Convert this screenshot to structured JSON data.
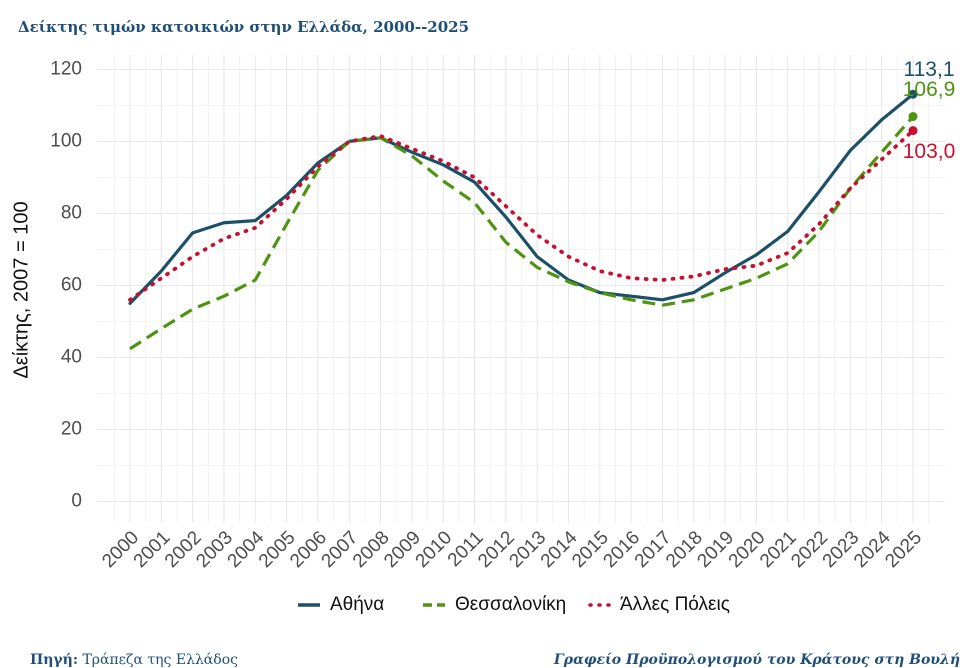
{
  "chart_data": {
    "type": "line",
    "title": "Δείκτης τιμών κατοικιών στην Ελλάδα, 2000--2025",
    "y_label": "Δείκτης, 2007 = 100",
    "categories": [
      "2000",
      "2001",
      "2002",
      "2003",
      "2004",
      "2005",
      "2006",
      "2007",
      "2008",
      "2009",
      "2010",
      "2011",
      "2012",
      "2013",
      "2014",
      "2015",
      "2016",
      "2017",
      "2018",
      "2019",
      "2020",
      "2021",
      "2022",
      "2023",
      "2024",
      "2025"
    ],
    "series": [
      {
        "name": "Αθήνα",
        "color": "#1b5068",
        "dash": "solid",
        "values": [
          55,
          64,
          74.6,
          77.4,
          78,
          85,
          94,
          100,
          101,
          97,
          93.5,
          88.7,
          79,
          68,
          61.5,
          58,
          57,
          56,
          58,
          63.5,
          68.5,
          75,
          86,
          97.5,
          106,
          113.1
        ],
        "value_labels": [
          null,
          null,
          null,
          null,
          null,
          null,
          null,
          null,
          null,
          null,
          null,
          null,
          null,
          null,
          null,
          null,
          null,
          null,
          null,
          null,
          null,
          null,
          null,
          null,
          null,
          "113,1"
        ]
      },
      {
        "name": "Θεσσαλονίκη",
        "color": "#4e9410",
        "dash": "dashed",
        "values": [
          42.4,
          48,
          53.4,
          57,
          61.5,
          77,
          92,
          100,
          101,
          96,
          89,
          83,
          72,
          65,
          61,
          58,
          56,
          54.5,
          56,
          59,
          62,
          66,
          75,
          87,
          97,
          106.9
        ],
        "value_labels": [
          null,
          null,
          null,
          null,
          null,
          null,
          null,
          null,
          null,
          null,
          null,
          null,
          null,
          null,
          null,
          null,
          null,
          null,
          null,
          null,
          null,
          null,
          null,
          null,
          null,
          "106,9"
        ]
      },
      {
        "name": "Άλλες Πόλεις",
        "color": "#c8102e",
        "dash": "dotted",
        "values": [
          56,
          62,
          68,
          73,
          76,
          84,
          93,
          100,
          101.5,
          98,
          94.5,
          90,
          82,
          74,
          68,
          64,
          62,
          61.5,
          62.5,
          64.5,
          65.5,
          69,
          77,
          87,
          95,
          103.0
        ],
        "value_labels": [
          null,
          null,
          null,
          null,
          null,
          null,
          null,
          null,
          null,
          null,
          null,
          null,
          null,
          null,
          null,
          null,
          null,
          null,
          null,
          null,
          null,
          null,
          null,
          null,
          null,
          "103,0"
        ]
      }
    ],
    "ylim": [
      -6,
      124
    ],
    "yticks": [
      0,
      20,
      40,
      60,
      80,
      100,
      120
    ],
    "grid": true,
    "legend": "bottom",
    "source_label": "Πηγή:",
    "source": "Τράπεζα της Ελλάδος",
    "credit": "Γραφείο Προϋπολογισμού του Κράτους στη Βουλή"
  }
}
